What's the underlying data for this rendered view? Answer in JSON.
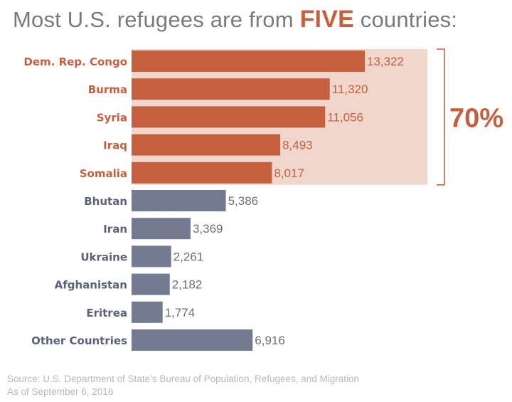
{
  "title": {
    "before": "Most U.S. refugees are from ",
    "highlight": "FIVE",
    "after": " countries:"
  },
  "colors": {
    "highlight_bar": "#c5603f",
    "other_bar": "#737b93",
    "highlight_band": "#f1d6cd",
    "highlight_label": "#c5603f",
    "other_label": "#5b6277"
  },
  "chart_data": {
    "type": "bar",
    "orientation": "horizontal",
    "categories": [
      "Dem. Rep. Congo",
      "Burma",
      "Syria",
      "Iraq",
      "Somalia",
      "Bhutan",
      "Iran",
      "Ukraine",
      "Afghanistan",
      "Eritrea",
      "Other Countries"
    ],
    "values": [
      13322,
      11320,
      11056,
      8493,
      8017,
      5386,
      3369,
      2261,
      2182,
      1774,
      6916
    ],
    "value_labels": [
      "13,322",
      "11,320",
      "11,056",
      "8,493",
      "8,017",
      "5,386",
      "3,369",
      "2,261",
      "2,182",
      "1,774",
      "6,916"
    ],
    "highlighted_count": 5,
    "highlight_annotation": "70%",
    "grid": false,
    "legend": "none"
  },
  "source": {
    "line1": "Source: U.S. Department of State’s Bureau of Population, Refugees, and Migration",
    "line2": "As of September 6, 2016"
  }
}
